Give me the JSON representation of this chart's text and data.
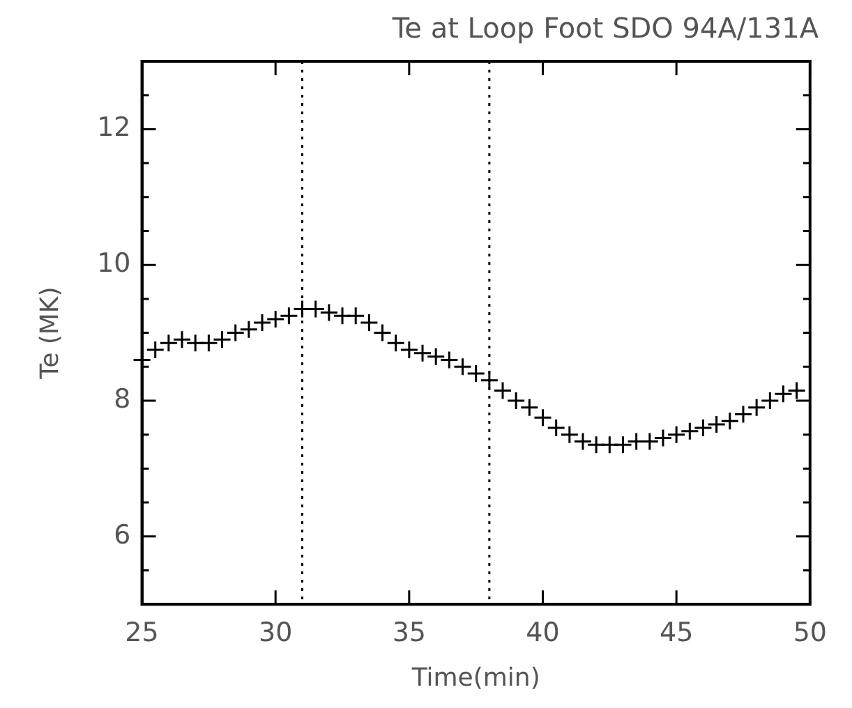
{
  "chart_data": {
    "type": "scatter",
    "title": "Te at Loop Foot SDO 94A/131A",
    "xlabel": "Time(min)",
    "ylabel": "Te (MK)",
    "x": [
      25,
      25.5,
      26,
      26.5,
      27,
      27.5,
      28,
      28.5,
      29,
      29.5,
      30,
      30.5,
      31,
      31.5,
      32,
      32.5,
      33,
      33.5,
      34,
      34.5,
      35,
      35.5,
      36,
      36.5,
      37,
      37.5,
      38,
      38.5,
      39,
      39.5,
      40,
      40.5,
      41,
      41.5,
      42,
      42.5,
      43,
      43.5,
      44,
      44.5,
      45,
      45.5,
      46,
      46.5,
      47,
      47.5,
      48,
      48.5,
      49,
      49.5
    ],
    "series": [
      {
        "color": "#000000",
        "values": [
          8.6,
          8.75,
          8.85,
          8.9,
          8.85,
          8.85,
          8.9,
          9.0,
          9.05,
          9.15,
          9.2,
          9.25,
          9.35,
          9.35,
          9.3,
          9.25,
          9.25,
          9.15,
          9.0,
          8.85,
          8.75,
          8.7,
          8.65,
          8.6,
          8.5,
          8.4,
          8.3,
          8.15,
          8.0,
          7.9,
          7.75,
          7.6,
          7.5,
          7.4,
          7.35,
          7.35,
          7.35,
          7.4,
          7.4,
          7.45,
          7.5,
          7.55,
          7.6,
          7.65,
          7.7,
          7.8,
          7.9,
          8.0,
          8.1,
          8.15
        ]
      }
    ],
    "xlim": [
      25,
      50
    ],
    "xticks": [
      25,
      30,
      35,
      40,
      45,
      50
    ],
    "ylim": [
      5,
      13
    ],
    "yticks": [
      {
        "value": 5.5,
        "label": null
      },
      6,
      {
        "value": 6.5,
        "label": null
      },
      {
        "value": 7,
        "label": null
      },
      {
        "value": 7.5,
        "label": null
      },
      8,
      {
        "value": 8.5,
        "label": null
      },
      {
        "value": 9,
        "label": null
      },
      {
        "value": 9.5,
        "label": null
      },
      10,
      {
        "value": 10.5,
        "label": null
      },
      {
        "value": 11,
        "label": null
      },
      {
        "value": 11.5,
        "label": null
      },
      12,
      {
        "value": 12.5,
        "label": null
      }
    ],
    "ref_lines": [
      {
        "axis": "x",
        "value": 31,
        "color": "#000000",
        "line_style": "dotted"
      },
      {
        "axis": "x",
        "value": 38,
        "color": "#000000",
        "line_style": "dotted"
      }
    ],
    "marker": "cross",
    "grid": false,
    "legend": false
  }
}
